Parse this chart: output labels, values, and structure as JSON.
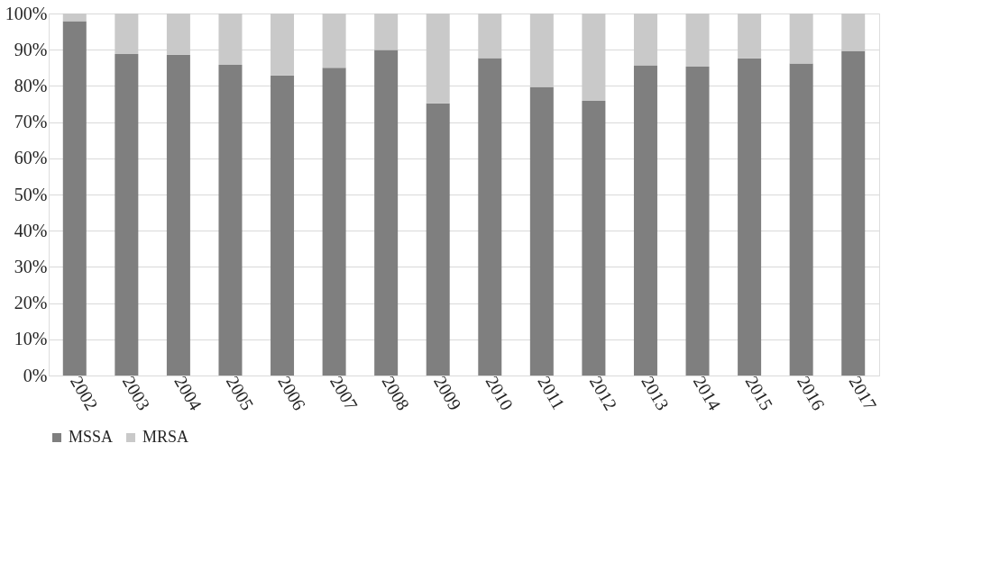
{
  "chart_data": {
    "type": "bar",
    "stacked": true,
    "categories": [
      "2002",
      "2003",
      "2004",
      "2005",
      "2006",
      "2007",
      "2008",
      "2009",
      "2010",
      "2011",
      "2012",
      "2013",
      "2014",
      "2015",
      "2016",
      "2017"
    ],
    "series": [
      {
        "name": "MSSA",
        "color": "#7f7f7f",
        "values": [
          97.9,
          88.8,
          88.6,
          85.8,
          82.9,
          85.0,
          89.9,
          75.2,
          87.7,
          79.7,
          75.9,
          85.7,
          85.3,
          87.6,
          86.2,
          89.7
        ]
      },
      {
        "name": "MRSA",
        "color": "#c9c9c9",
        "values": [
          2.1,
          11.2,
          11.4,
          14.2,
          17.1,
          15.0,
          10.1,
          24.8,
          12.3,
          20.3,
          24.1,
          14.3,
          14.7,
          12.4,
          13.8,
          10.3
        ]
      }
    ],
    "ylim": [
      0,
      100
    ],
    "yticks": [
      {
        "value": 0,
        "label": "0%"
      },
      {
        "value": 10,
        "label": "10%"
      },
      {
        "value": 20,
        "label": "20%"
      },
      {
        "value": 30,
        "label": "30%"
      },
      {
        "value": 40,
        "label": "40%"
      },
      {
        "value": 50,
        "label": "50%"
      },
      {
        "value": 60,
        "label": "60%"
      },
      {
        "value": 70,
        "label": "70%"
      },
      {
        "value": 80,
        "label": "80%"
      },
      {
        "value": 90,
        "label": "90%"
      },
      {
        "value": 100,
        "label": "100%"
      }
    ],
    "grid": "y",
    "legend": "bottom"
  }
}
